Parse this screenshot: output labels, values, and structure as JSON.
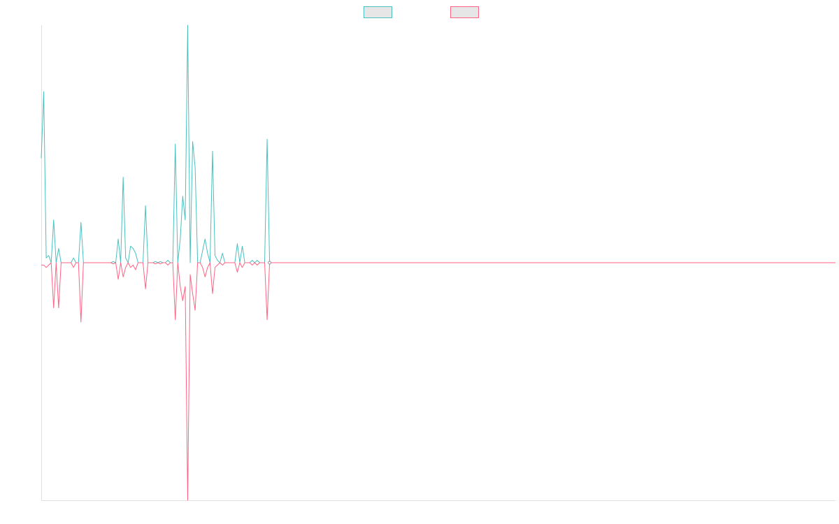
{
  "chart_data": {
    "type": "line",
    "grid": false,
    "legend_position": "top",
    "x": [
      0,
      1,
      2,
      3,
      4,
      5,
      6,
      7,
      8,
      9,
      10,
      11,
      12,
      13,
      14,
      15,
      16,
      17,
      18,
      19,
      20,
      21,
      22,
      23,
      24,
      25,
      26,
      27,
      28,
      29,
      30,
      31,
      32,
      33,
      34,
      35,
      36,
      37,
      38,
      39,
      40,
      41,
      42,
      43,
      44,
      45,
      46,
      47,
      48,
      49,
      50,
      51,
      52,
      53,
      54,
      55,
      56,
      57,
      58,
      59,
      60,
      61,
      62,
      63,
      64,
      65,
      66,
      67,
      68,
      69,
      70,
      71,
      72,
      73,
      74,
      75,
      76,
      77,
      78,
      79,
      80,
      81,
      82,
      83,
      84,
      85,
      86,
      87,
      88,
      89,
      90,
      91,
      92,
      93,
      94,
      95,
      96,
      97,
      98,
      99,
      100,
      101,
      102,
      103,
      104,
      105,
      106,
      107,
      108,
      109,
      110,
      111,
      112,
      113,
      114,
      115,
      116,
      117,
      118,
      119,
      120,
      121,
      122,
      123,
      124,
      125,
      126,
      127,
      128,
      129,
      130,
      131,
      132,
      133,
      134,
      135,
      136,
      137,
      138,
      139,
      140,
      141,
      142,
      143,
      144,
      145,
      146,
      147,
      148,
      149,
      150,
      151,
      152,
      153,
      154,
      155,
      156,
      157,
      158,
      159,
      160,
      161,
      162,
      163,
      164,
      165,
      166,
      167,
      168,
      169,
      170,
      171,
      172,
      173,
      174,
      175,
      176,
      177,
      178,
      179,
      180,
      181,
      182,
      183,
      184,
      185,
      186,
      187,
      188,
      189,
      190,
      191,
      192,
      193,
      194,
      195,
      196,
      197,
      198,
      199,
      200,
      201,
      202,
      203,
      204,
      205,
      206,
      207,
      208,
      209,
      210,
      211,
      212,
      213,
      214,
      215,
      216,
      217,
      218,
      219,
      220,
      221,
      222,
      223,
      224,
      225,
      226,
      227,
      228,
      229,
      230,
      231,
      232,
      233,
      234,
      235,
      236,
      237,
      238,
      239,
      240,
      241,
      242,
      243,
      244,
      245,
      246,
      247,
      248,
      249,
      250,
      251,
      252,
      253,
      254,
      255,
      256,
      257,
      258,
      259,
      260,
      261,
      262,
      263,
      264,
      265,
      266,
      267,
      268,
      269,
      270,
      271,
      272,
      273,
      274,
      275,
      276,
      277,
      278,
      279,
      280,
      281,
      282,
      283,
      284,
      285,
      286,
      287,
      288,
      289,
      290,
      291,
      292,
      293,
      294,
      295,
      296,
      297,
      298,
      299,
      300,
      301,
      302,
      303,
      304,
      305,
      306,
      307,
      308,
      309,
      310,
      311,
      312,
      313,
      314,
      315,
      316,
      317,
      318,
      319,
      320
    ],
    "xlim": [
      0,
      320
    ],
    "ylim": [
      -1.0,
      1.0
    ],
    "series": [
      {
        "color": "#4bc0c0",
        "points": [
          [
            0,
            0.44
          ],
          [
            1,
            0.72
          ],
          [
            2,
            0.02
          ],
          [
            3,
            0.03
          ],
          [
            4,
            0.0
          ],
          [
            5,
            0.18
          ],
          [
            6,
            0.0
          ],
          [
            7,
            0.06
          ],
          [
            8,
            0.0
          ],
          [
            12,
            0.0
          ],
          [
            13,
            0.02
          ],
          [
            14,
            0.0
          ],
          [
            15,
            0.0
          ],
          [
            16,
            0.17
          ],
          [
            17,
            0.0
          ],
          [
            28,
            0.0
          ],
          [
            29,
            0.005
          ],
          [
            30,
            0.0
          ],
          [
            31,
            0.1
          ],
          [
            32,
            0.0
          ],
          [
            33,
            0.36
          ],
          [
            34,
            0.02
          ],
          [
            35,
            0.0
          ],
          [
            36,
            0.07
          ],
          [
            37,
            0.06
          ],
          [
            38,
            0.04
          ],
          [
            39,
            0.0
          ],
          [
            40,
            0.0
          ],
          [
            41,
            0.0
          ],
          [
            42,
            0.24
          ],
          [
            43,
            0.0
          ],
          [
            44,
            0.0
          ],
          [
            45,
            0.0
          ],
          [
            46,
            0.005
          ],
          [
            47,
            0.0
          ],
          [
            48,
            0.005
          ],
          [
            49,
            0.0
          ],
          [
            50,
            0.0
          ],
          [
            51,
            0.01
          ],
          [
            52,
            0.0
          ],
          [
            53,
            0.0
          ],
          [
            54,
            0.5
          ],
          [
            55,
            0.0
          ],
          [
            56,
            0.1
          ],
          [
            57,
            0.28
          ],
          [
            58,
            0.18
          ],
          [
            59,
            1.0
          ],
          [
            60,
            0.0
          ],
          [
            61,
            0.51
          ],
          [
            62,
            0.4
          ],
          [
            63,
            0.0
          ],
          [
            64,
            0.0
          ],
          [
            65,
            0.05
          ],
          [
            66,
            0.1
          ],
          [
            67,
            0.04
          ],
          [
            68,
            0.0
          ],
          [
            69,
            0.47
          ],
          [
            70,
            0.03
          ],
          [
            71,
            0.01
          ],
          [
            72,
            0.0
          ],
          [
            73,
            0.04
          ],
          [
            74,
            0.0
          ],
          [
            75,
            0.0
          ],
          [
            76,
            0.0
          ],
          [
            77,
            0.0
          ],
          [
            78,
            0.0
          ],
          [
            79,
            0.08
          ],
          [
            80,
            0.0
          ],
          [
            81,
            0.07
          ],
          [
            82,
            0.0
          ],
          [
            83,
            0.0
          ],
          [
            84,
            0.0
          ],
          [
            85,
            0.01
          ],
          [
            86,
            0.0
          ],
          [
            87,
            0.01
          ],
          [
            88,
            0.0
          ],
          [
            89,
            0.0
          ],
          [
            90,
            0.0
          ],
          [
            91,
            0.52
          ],
          [
            92,
            0.0
          ],
          [
            320,
            0.0
          ]
        ]
      },
      {
        "color": "#ff6384",
        "points": [
          [
            0,
            -0.01
          ],
          [
            1,
            -0.01
          ],
          [
            2,
            -0.02
          ],
          [
            3,
            -0.01
          ],
          [
            4,
            0.0
          ],
          [
            5,
            -0.19
          ],
          [
            6,
            0.0
          ],
          [
            7,
            -0.19
          ],
          [
            8,
            0.0
          ],
          [
            12,
            0.0
          ],
          [
            13,
            -0.02
          ],
          [
            14,
            0.0
          ],
          [
            15,
            0.0
          ],
          [
            16,
            -0.25
          ],
          [
            17,
            0.0
          ],
          [
            28,
            0.0
          ],
          [
            29,
            -0.005
          ],
          [
            30,
            0.0
          ],
          [
            31,
            -0.07
          ],
          [
            32,
            0.0
          ],
          [
            33,
            -0.06
          ],
          [
            34,
            -0.02
          ],
          [
            35,
            0.0
          ],
          [
            36,
            -0.02
          ],
          [
            37,
            -0.01
          ],
          [
            38,
            -0.03
          ],
          [
            39,
            0.0
          ],
          [
            40,
            0.0
          ],
          [
            41,
            0.0
          ],
          [
            42,
            -0.11
          ],
          [
            43,
            0.0
          ],
          [
            44,
            0.0
          ],
          [
            45,
            0.0
          ],
          [
            46,
            -0.005
          ],
          [
            47,
            0.0
          ],
          [
            48,
            -0.005
          ],
          [
            49,
            0.0
          ],
          [
            50,
            0.0
          ],
          [
            51,
            -0.01
          ],
          [
            52,
            0.0
          ],
          [
            53,
            0.0
          ],
          [
            54,
            -0.24
          ],
          [
            55,
            0.0
          ],
          [
            56,
            -0.1
          ],
          [
            57,
            -0.16
          ],
          [
            58,
            -0.1
          ],
          [
            59,
            -1.0
          ],
          [
            60,
            -0.05
          ],
          [
            61,
            -0.13
          ],
          [
            62,
            -0.2
          ],
          [
            63,
            0.0
          ],
          [
            64,
            0.0
          ],
          [
            65,
            -0.02
          ],
          [
            66,
            -0.06
          ],
          [
            67,
            -0.02
          ],
          [
            68,
            0.0
          ],
          [
            69,
            -0.13
          ],
          [
            70,
            -0.02
          ],
          [
            71,
            -0.01
          ],
          [
            72,
            0.0
          ],
          [
            73,
            -0.01
          ],
          [
            74,
            0.0
          ],
          [
            75,
            0.0
          ],
          [
            76,
            0.0
          ],
          [
            77,
            0.0
          ],
          [
            78,
            0.0
          ],
          [
            79,
            -0.04
          ],
          [
            80,
            0.0
          ],
          [
            81,
            -0.02
          ],
          [
            82,
            0.0
          ],
          [
            83,
            0.0
          ],
          [
            84,
            0.0
          ],
          [
            85,
            -0.01
          ],
          [
            86,
            0.0
          ],
          [
            87,
            -0.01
          ],
          [
            88,
            0.0
          ],
          [
            89,
            0.0
          ],
          [
            90,
            0.0
          ],
          [
            91,
            -0.24
          ],
          [
            92,
            0.0
          ],
          [
            320,
            0.0
          ]
        ]
      }
    ],
    "legend": [
      {
        "label": "",
        "stroke": "#4bc0c0",
        "fill": "#e6e6e6"
      },
      {
        "label": "",
        "stroke": "#ff6384",
        "fill": "#e6e6e6"
      }
    ]
  }
}
